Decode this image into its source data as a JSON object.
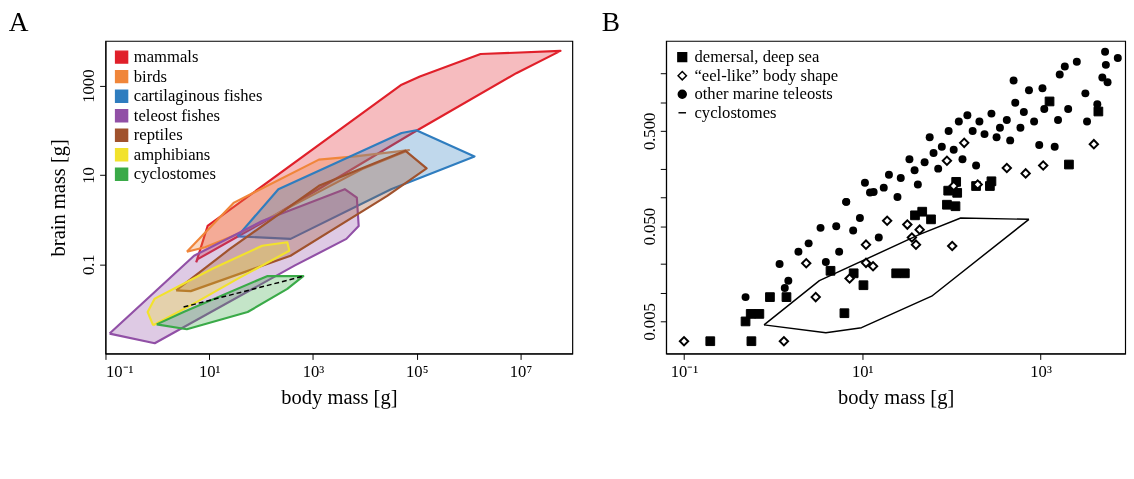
{
  "chart_data": [
    {
      "type": "area",
      "title": "A",
      "xlabel": "body mass [g]",
      "ylabel": "brain mass [g]",
      "log": "xy",
      "xlim": [
        0.1,
        100000000.0
      ],
      "ylim": [
        0.001,
        10000
      ],
      "xticks": [
        {
          "value": 0.1,
          "label": "10⁻¹"
        },
        {
          "value": 10,
          "label": "10¹"
        },
        {
          "value": 1000,
          "label": "10³"
        },
        {
          "value": 100000,
          "label": "10⁵"
        },
        {
          "value": 10000000,
          "label": "10⁷"
        }
      ],
      "yticks": [
        0.1,
        10,
        1000
      ],
      "legend": "top left",
      "grid": false,
      "series": [
        {
          "name": "mammals",
          "color": "#e0202a",
          "x": [
            5.6,
            9.3,
            51000,
            115000,
            1700000,
            59000000,
            8300000,
            83000,
            105,
            6.0,
            5.6
          ],
          "values": [
            0.11,
            0.72,
            1050,
            1600,
            5100,
            6000,
            1900,
            87,
            0.85,
            0.13,
            0.11
          ]
        },
        {
          "name": "birds",
          "color": "#f0863a",
          "x": [
            3.7,
            30,
            1300,
            6500,
            71000,
            8900,
            41,
            8.3,
            3.7
          ],
          "values": [
            0.19,
            2.4,
            22,
            26,
            36,
            13.5,
            0.51,
            0.24,
            0.19
          ]
        },
        {
          "name": "cartilaginous fishes",
          "color": "#2f7dbf",
          "x": [
            35,
            215,
            51000,
            98000,
            1300000,
            32000,
            370,
            35
          ],
          "values": [
            0.42,
            4.8,
            87,
            100,
            26,
            4.8,
            0.37,
            0.42
          ]
        },
        {
          "name": "teleost fishes",
          "color": "#9150a6",
          "x": [
            0.12,
            0.89,
            440,
            4400,
            7600,
            7000,
            4100,
            105,
            5.1,
            0.12
          ],
          "values": [
            0.0028,
            0.0017,
            0.093,
            0.37,
            0.72,
            3.1,
            4.8,
            0.93,
            0.155,
            0.0028
          ]
        },
        {
          "name": "reptiles",
          "color": "#a0522d",
          "x": [
            2.3,
            25,
            1300,
            60000,
            155000,
            27000,
            370,
            4.4,
            2.3
          ],
          "values": [
            0.026,
            0.22,
            5.7,
            35,
            14,
            3.4,
            0.155,
            0.025,
            0.026
          ]
        },
        {
          "name": "amphibians",
          "color": "#f2e22c",
          "x": [
            0.83,
            0.65,
            0.89,
            11.5,
            105,
            320,
            350,
            35,
            4.4,
            0.83
          ],
          "values": [
            0.0043,
            0.0085,
            0.017,
            0.079,
            0.26,
            0.31,
            0.2,
            0.047,
            0.012,
            0.0043
          ]
        },
        {
          "name": "cyclostomes",
          "color": "#3aaa48",
          "x": [
            0.97,
            3.2,
            130,
            650,
            320,
            55,
            3.7,
            0.97
          ],
          "values": [
            0.0045,
            0.0085,
            0.054,
            0.054,
            0.028,
            0.0085,
            0.0035,
            0.0045
          ]
        },
        {
          "type": "line",
          "color": "#000000",
          "line_style": "dashed",
          "x": [
            3.2,
            650
          ],
          "values": [
            0.011,
            0.054
          ]
        }
      ]
    },
    {
      "type": "scatter",
      "title": "B",
      "xlabel": "body mass [g]",
      "log": "xy",
      "xlim": [
        0.063,
        8900
      ],
      "ylim": [
        0.0023,
        4.4
      ],
      "xticks": [
        {
          "value": 0.1,
          "label": "10⁻¹"
        },
        {
          "value": 10,
          "label": "10¹"
        },
        {
          "value": 1000,
          "label": "10³"
        }
      ],
      "yticks": [
        0.005,
        {
          "value": 0.01,
          "label": null
        },
        {
          "value": 0.02,
          "label": null
        },
        {
          "value": 0.05,
          "label": "0.050"
        },
        {
          "value": 0.1,
          "label": null
        },
        {
          "value": 0.2,
          "label": null
        },
        {
          "value": 0.5,
          "label": "0.500"
        },
        {
          "value": 1,
          "label": null
        },
        {
          "value": 2,
          "label": null
        }
      ],
      "legend": "top left",
      "grid": false,
      "series": [
        {
          "name": "demersal, deep sea",
          "color": "#000000",
          "marker": "square",
          "x": [
            0.197,
            0.57,
            0.49,
            0.56,
            0.7,
            0.92,
            1.41,
            4.4,
            8.0,
            6.3,
            10.3,
            24,
            30,
            39,
            47,
            59,
            89,
            111,
            92,
            116,
            113,
            189,
            270,
            281,
            1950,
            2080,
            1260,
            4450
          ],
          "values": [
            0.0031,
            0.0031,
            0.005,
            0.006,
            0.006,
            0.009,
            0.009,
            0.017,
            0.016,
            0.0061,
            0.012,
            0.016,
            0.016,
            0.065,
            0.071,
            0.059,
            0.084,
            0.081,
            0.118,
            0.112,
            0.146,
            0.132,
            0.132,
            0.148,
            null,
            0.222,
            1.02,
            0.8
          ]
        },
        {
          "name": "“eel-like” body shape",
          "color": "#000000",
          "marker": "diamond",
          "x": [
            0.1,
            1.32,
            3.0,
            2.35,
            7.2,
            11,
            13.2,
            11,
            19,
            32,
            44,
            36,
            40,
            102,
            106,
            197,
            418,
            680,
            1070,
            3960,
            89,
            139
          ],
          "values": [
            0.0031,
            0.0031,
            0.009,
            0.0204,
            0.0141,
            0.0206,
            0.019,
            0.032,
            0.057,
            0.052,
            0.046,
            0.038,
            0.032,
            0.031,
            0.132,
            0.137,
            0.204,
            0.179,
            0.217,
            0.363,
            0.243,
            0.375
          ]
        },
        {
          "name": "other marine teleosts",
          "color": "#000000",
          "marker": "circle",
          "x": [
            0.49,
            1.18,
            1.35,
            1.48,
            1.92,
            2.5,
            3.4,
            3.9,
            5.1,
            5.5,
            6.6,
            7.9,
            9.4,
            12.2,
            15.3,
            6.6,
            10.7,
            13.4,
            17.4,
            19.9,
            24.8,
            27,
            33.8,
            38.6,
            42,
            50,
            57,
            63,
            71,
            78,
            93,
            106,
            121,
            133,
            151,
            173,
            189,
            206,
            235,
            281,
            321,
            350,
            418,
            456,
            498,
            520,
            594,
            649,
            741,
            846,
            966,
            1050,
            1100,
            1440,
            1570,
            1640,
            1870,
            2040,
            2550,
            3180,
            3320,
            4330,
            4930,
            5290,
            5400,
            7350,
            5640
          ],
          "values": [
            0.009,
            0.02,
            0.0112,
            0.0134,
            0.027,
            0.033,
            0.048,
            0.021,
            0.05,
            0.027,
            0.09,
            0.045,
            0.061,
            0.113,
            0.038,
            0.09,
            0.143,
            0.114,
            0.127,
            0.173,
            0.101,
            0.16,
            0.252,
            0.193,
            0.137,
            0.234,
            0.43,
            0.294,
            0.201,
            0.342,
            0.5,
            0.317,
            0.628,
            0.252,
            0.73,
            0.5,
            0.217,
            0.628,
            0.463,
            0.76,
            0.43,
            0.54,
            0.653,
            0.398,
            1.69,
            0.99,
            0.54,
            0.79,
            1.34,
            0.628,
            0.355,
            1.4,
            0.85,
            0.342,
            0.653,
            1.96,
            2.38,
            0.85,
            2.66,
            1.24,
            0.628,
            0.955,
            1.82,
            3.4,
            2.47,
            2.92,
            1.62
          ]
        },
        {
          "name": "cyclostomes",
          "color": "#000000",
          "type": "line",
          "x": [
            0.79,
            3.3,
            44,
            127,
            740
          ],
          "values": [
            0.0046,
            0.0134,
            0.041,
            0.061,
            0.059
          ]
        },
        {
          "color": "#000000",
          "type": "line",
          "x": [
            0.79,
            3.9,
            9.8,
            60,
            740
          ],
          "values": [
            0.0046,
            0.0038,
            0.0043,
            0.0092,
            0.059
          ]
        }
      ]
    }
  ]
}
